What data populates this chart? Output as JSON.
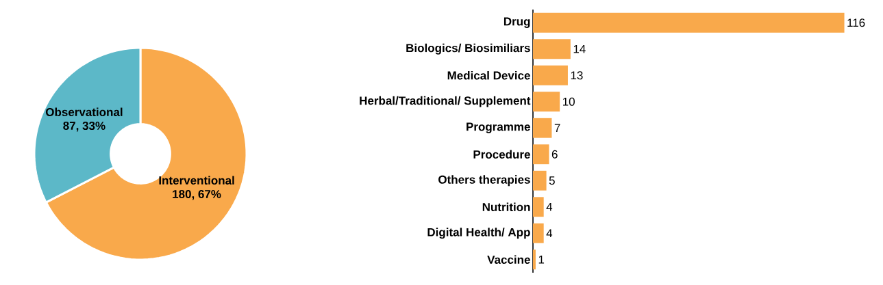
{
  "chart_data": [
    {
      "type": "donut",
      "categories": [
        "Interventional",
        "Observational"
      ],
      "values": [
        180,
        87
      ],
      "value_labels": [
        "180, 67%",
        "87, 33%"
      ],
      "colors": [
        "#f9a94b",
        "#5cb8c8"
      ]
    },
    {
      "type": "bar",
      "orientation": "horizontal",
      "categories": [
        "Drug",
        "Biologics/ Biosimiliars",
        "Medical Device",
        "Herbal/Traditional/ Supplement",
        "Programme",
        "Procedure",
        "Others therapies",
        "Nutrition",
        "Digital Health/ App",
        "Vaccine"
      ],
      "values": [
        116,
        14,
        13,
        10,
        7,
        6,
        5,
        4,
        4,
        1
      ],
      "color": "#f9a94b",
      "data_labels": true
    }
  ]
}
